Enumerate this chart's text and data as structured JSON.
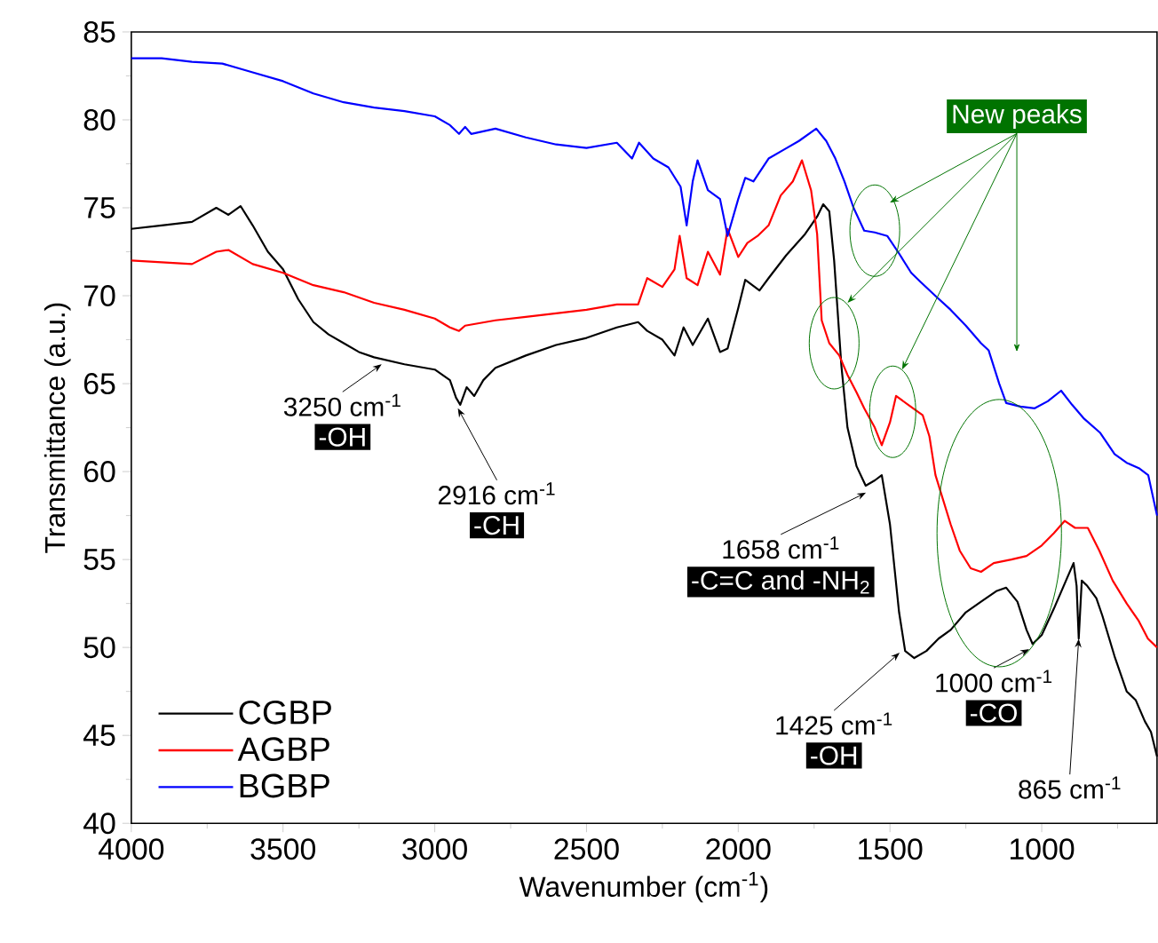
{
  "chart_data": {
    "type": "line",
    "xlabel": "Wavenumber (cm$^{-1}$)",
    "ylabel": "Transmittance (a.u.)",
    "xlim": [
      4000,
      620
    ],
    "xticks": [
      4000,
      {
        "value": 3750,
        "label": null
      },
      3500,
      {
        "value": 3250,
        "label": null
      },
      3000,
      {
        "value": 2750,
        "label": null
      },
      2500,
      {
        "value": 2250,
        "label": null
      },
      2000,
      {
        "value": 1750,
        "label": null
      },
      1500,
      {
        "value": 1250,
        "label": null
      },
      1000,
      {
        "value": 750,
        "label": null
      }
    ],
    "ylim": [
      40,
      85
    ],
    "yticks": [
      40,
      {
        "value": 42.5,
        "label": null
      },
      45,
      {
        "value": 47.5,
        "label": null
      },
      50,
      {
        "value": 52.5,
        "label": null
      },
      55,
      {
        "value": 57.5,
        "label": null
      },
      60,
      {
        "value": 62.5,
        "label": null
      },
      65,
      {
        "value": 67.5,
        "label": null
      },
      70,
      {
        "value": 72.5,
        "label": null
      },
      75,
      {
        "value": 77.5,
        "label": null
      },
      80,
      {
        "value": 82.5,
        "label": null
      },
      85
    ],
    "legend": "bottom left",
    "grid": false,
    "series": [
      {
        "name": "CGBP",
        "color": "#000000",
        "x": [
          4000,
          3900,
          3800,
          3720,
          3680,
          3640,
          3600,
          3550,
          3500,
          3450,
          3400,
          3350,
          3300,
          3250,
          3200,
          3100,
          3000,
          2950,
          2930,
          2916,
          2895,
          2870,
          2840,
          2800,
          2700,
          2600,
          2500,
          2400,
          2330,
          2300,
          2250,
          2210,
          2180,
          2150,
          2100,
          2060,
          2035,
          2000,
          1977,
          1930,
          1900,
          1842,
          1780,
          1740,
          1720,
          1700,
          1684,
          1660,
          1640,
          1610,
          1580,
          1550,
          1527,
          1500,
          1470,
          1450,
          1420,
          1380,
          1340,
          1300,
          1250,
          1200,
          1150,
          1117,
          1080,
          1050,
          1030,
          1000,
          960,
          920,
          895,
          885,
          878,
          868,
          850,
          820,
          800,
          760,
          720,
          690,
          660,
          640,
          620
        ],
        "values": [
          73.8,
          74,
          74.2,
          75,
          74.6,
          75.1,
          74,
          72.5,
          71.5,
          69.8,
          68.5,
          67.8,
          67.3,
          66.8,
          66.5,
          66.1,
          65.8,
          65.2,
          64.2,
          63.8,
          64.8,
          64.3,
          65.2,
          65.9,
          66.6,
          67.2,
          67.6,
          68.2,
          68.5,
          68,
          67.5,
          66.6,
          68.2,
          67.2,
          68.7,
          66.8,
          67,
          69.3,
          70.9,
          70.3,
          71,
          72.3,
          73.5,
          74.5,
          75.2,
          74.8,
          72,
          66,
          62.5,
          60.3,
          59.2,
          59.5,
          59.8,
          57,
          52,
          49.8,
          49.4,
          49.8,
          50.5,
          51,
          52,
          52.6,
          53.2,
          53.4,
          52.6,
          51,
          50.2,
          50.7,
          52.2,
          53.8,
          54.8,
          53.5,
          50.5,
          53.8,
          53.5,
          52.8,
          51.8,
          49.5,
          47.5,
          47,
          45.8,
          45.2,
          43.8
        ]
      },
      {
        "name": "AGBP",
        "color": "#ff0000",
        "x": [
          4000,
          3900,
          3800,
          3720,
          3680,
          3640,
          3600,
          3500,
          3400,
          3300,
          3200,
          3100,
          3000,
          2950,
          2920,
          2900,
          2800,
          2700,
          2600,
          2500,
          2400,
          2330,
          2300,
          2250,
          2210,
          2193,
          2170,
          2134,
          2100,
          2060,
          2035,
          2000,
          1970,
          1936,
          1900,
          1860,
          1820,
          1790,
          1760,
          1740,
          1725,
          1700,
          1667,
          1640,
          1610,
          1585,
          1550,
          1527,
          1500,
          1480,
          1440,
          1392,
          1370,
          1350,
          1300,
          1270,
          1234,
          1200,
          1158,
          1100,
          1050,
          1000,
          960,
          924,
          890,
          848,
          810,
          766,
          720,
          680,
          650,
          620
        ],
        "values": [
          72,
          71.9,
          71.8,
          72.5,
          72.6,
          72.2,
          71.8,
          71.3,
          70.6,
          70.2,
          69.6,
          69.2,
          68.7,
          68.2,
          68,
          68.3,
          68.6,
          68.8,
          69,
          69.2,
          69.5,
          69.5,
          71,
          70.5,
          71.5,
          73.4,
          71,
          70.6,
          72.5,
          71.2,
          73.8,
          72.2,
          73,
          73.4,
          74,
          75.7,
          76.5,
          77.7,
          76,
          73.5,
          68.6,
          67.3,
          66.6,
          65.5,
          64.5,
          63.6,
          62.5,
          61.5,
          62.8,
          64.3,
          63.8,
          63.2,
          62,
          59.8,
          57,
          55.5,
          54.5,
          54.3,
          54.8,
          55,
          55.2,
          55.8,
          56.5,
          57.2,
          56.8,
          56.8,
          55.5,
          53.8,
          52.5,
          51.5,
          50.5,
          50
        ]
      },
      {
        "name": "BGBP",
        "color": "#0000ff",
        "x": [
          4000,
          3900,
          3800,
          3700,
          3600,
          3500,
          3400,
          3300,
          3200,
          3100,
          3000,
          2950,
          2920,
          2900,
          2880,
          2800,
          2700,
          2600,
          2500,
          2400,
          2350,
          2327,
          2280,
          2230,
          2190,
          2170,
          2150,
          2134,
          2100,
          2060,
          2035,
          2000,
          1977,
          1950,
          1900,
          1850,
          1800,
          1743,
          1710,
          1680,
          1650,
          1620,
          1585,
          1550,
          1509,
          1470,
          1430,
          1400,
          1351,
          1300,
          1250,
          1200,
          1175,
          1140,
          1117,
          1070,
          1023,
          980,
          936,
          900,
          860,
          807,
          760,
          720,
          680,
          649,
          620
        ],
        "values": [
          83.5,
          83.5,
          83.3,
          83.2,
          82.7,
          82.2,
          81.5,
          81,
          80.7,
          80.5,
          80.2,
          79.7,
          79.2,
          79.6,
          79.2,
          79.5,
          79,
          78.6,
          78.4,
          78.7,
          77.8,
          78.7,
          77.8,
          77.3,
          76.2,
          74,
          76.5,
          77.7,
          76,
          75.5,
          73.4,
          75.5,
          76.7,
          76.5,
          77.8,
          78.3,
          78.8,
          79.5,
          78.8,
          77.8,
          76.5,
          75,
          73.7,
          73.6,
          73.4,
          72.4,
          71.3,
          70.8,
          70,
          69.2,
          68.3,
          67.3,
          66.9,
          65,
          63.9,
          63.7,
          63.6,
          64,
          64.6,
          63.8,
          63,
          62.2,
          61,
          60.5,
          60.2,
          59.8,
          57.5
        ]
      }
    ],
    "annotations": [
      "New peaks",
      {
        "text": "3250 cm$^{-1}$",
        "x": 3175,
        "y": 66.1
      },
      "-OH",
      {
        "text": "2916 cm$^{-1}$",
        "x": 2924,
        "y": 63.6
      },
      "-CH",
      {
        "text": "1658 cm$^{-1}$",
        "x": 1579,
        "y": 58.8
      },
      "-C=C and -NH$_{2}$",
      {
        "text": "1425 cm$^{-1}$",
        "x": 1468,
        "y": 49.7
      },
      "-OH",
      {
        "text": "1000 cm$^{-1}$",
        "x": 1041,
        "y": 49.9
      },
      "-CO",
      {
        "text": "865 cm$^{-1}$",
        "x": 878,
        "y": 50.5
      }
    ]
  }
}
